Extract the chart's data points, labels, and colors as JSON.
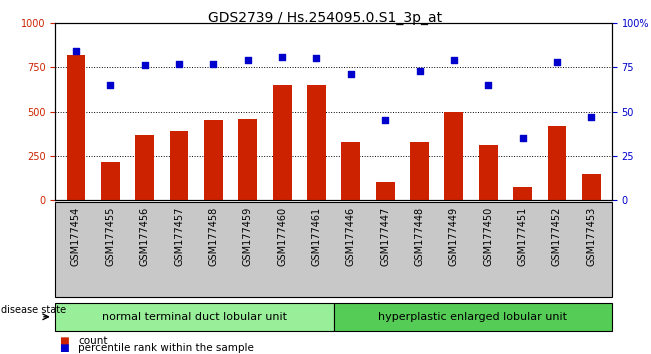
{
  "title": "GDS2739 / Hs.254095.0.S1_3p_at",
  "samples": [
    "GSM177454",
    "GSM177455",
    "GSM177456",
    "GSM177457",
    "GSM177458",
    "GSM177459",
    "GSM177460",
    "GSM177461",
    "GSM177446",
    "GSM177447",
    "GSM177448",
    "GSM177449",
    "GSM177450",
    "GSM177451",
    "GSM177452",
    "GSM177453"
  ],
  "counts": [
    820,
    215,
    370,
    390,
    450,
    460,
    650,
    650,
    330,
    100,
    330,
    500,
    310,
    75,
    420,
    145
  ],
  "percentiles": [
    84,
    65,
    76,
    77,
    77,
    79,
    81,
    80,
    71,
    45,
    73,
    79,
    65,
    35,
    78,
    47
  ],
  "group1_label": "normal terminal duct lobular unit",
  "group2_label": "hyperplastic enlarged lobular unit",
  "group1_count": 8,
  "group2_count": 8,
  "bar_color": "#cc2200",
  "dot_color": "#0000cc",
  "ylim_left": [
    0,
    1000
  ],
  "ylim_right": [
    0,
    100
  ],
  "yticks_left": [
    0,
    250,
    500,
    750,
    1000
  ],
  "yticks_right": [
    0,
    25,
    50,
    75,
    100
  ],
  "ytick_labels_left": [
    "0",
    "250",
    "500",
    "750",
    "1000"
  ],
  "ytick_labels_right": [
    "0",
    "25",
    "50",
    "75",
    "100%"
  ],
  "bg_plot": "#ffffff",
  "bg_xtick": "#c8c8c8",
  "bg_group1": "#99ee99",
  "bg_group2": "#55cc55",
  "disease_state_label": "disease state",
  "legend_count_label": "count",
  "legend_percentile_label": "percentile rank within the sample",
  "title_fontsize": 10,
  "tick_fontsize": 7,
  "group_fontsize": 8
}
